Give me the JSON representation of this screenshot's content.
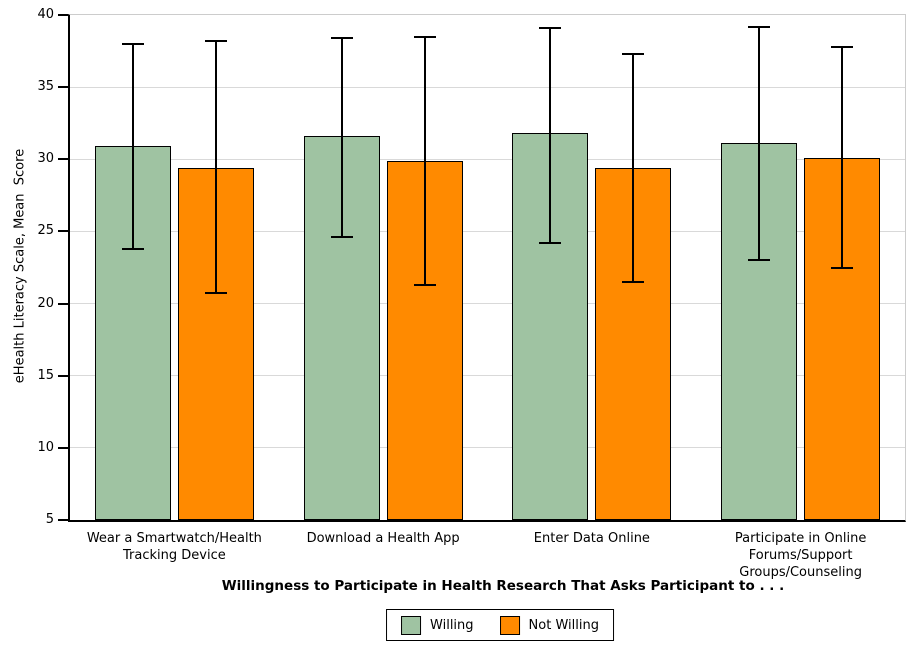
{
  "chart_data": {
    "type": "bar",
    "title": "",
    "xlabel": "Willingness to Participate in Health Research That Asks Participant to . . .",
    "ylabel": "eHealth Literacy Scale, Mean  Score",
    "ylim": [
      5,
      40
    ],
    "yticks": [
      5,
      10,
      15,
      20,
      25,
      30,
      35,
      40
    ],
    "grid": true,
    "legend_position": "bottom",
    "categories": [
      "Wear a Smartwatch/Health\nTracking Device",
      "Download a Health App",
      "Enter Data Online",
      "Participate in Online\nForums/Support\nGroups/Counseling"
    ],
    "series": [
      {
        "name": "Willing",
        "color": "#9fc3a2",
        "values": [
          30.9,
          31.6,
          31.8,
          31.1
        ],
        "error_low": [
          23.8,
          24.6,
          24.2,
          23.0
        ],
        "error_high": [
          38.0,
          38.4,
          39.1,
          39.2
        ]
      },
      {
        "name": "Not Willing",
        "color": "#ff8a00",
        "values": [
          29.4,
          29.9,
          29.4,
          30.1
        ],
        "error_low": [
          20.7,
          21.3,
          21.5,
          22.5
        ],
        "error_high": [
          38.2,
          38.5,
          37.3,
          37.8
        ]
      }
    ]
  },
  "colors": {
    "axis": "#000000",
    "gridline": "#d9d9d9",
    "plot_border": "#cccccc",
    "background": "#ffffff"
  },
  "legend": {
    "items": [
      {
        "label": "Willing",
        "color": "#9fc3a2"
      },
      {
        "label": "Not Willing",
        "color": "#ff8a00"
      }
    ]
  }
}
